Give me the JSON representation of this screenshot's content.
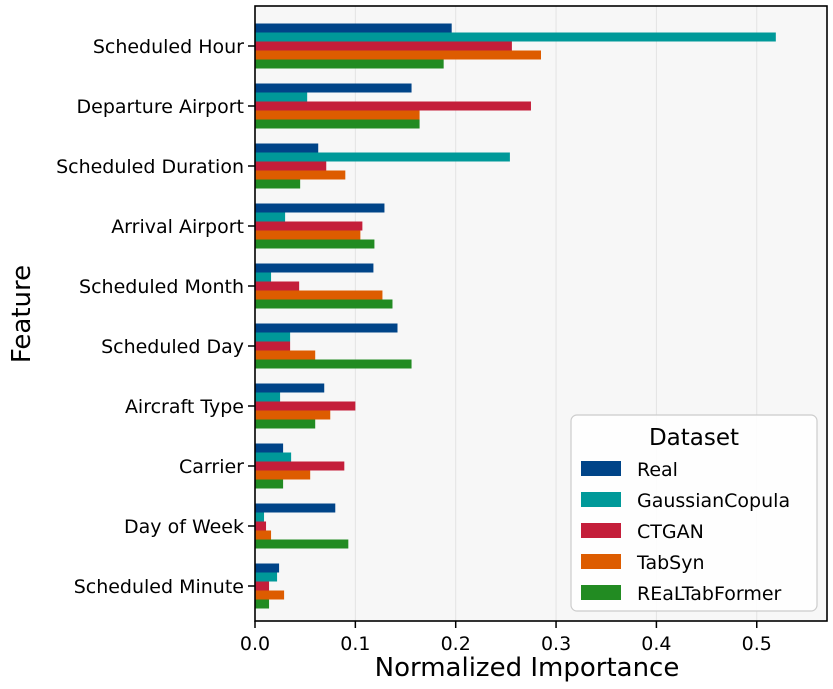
{
  "chart_data": {
    "type": "bar",
    "orientation": "horizontal",
    "xlabel": "Normalized Importance",
    "ylabel": "Feature",
    "xlim": [
      0,
      0.57
    ],
    "xticks": [
      "0.0",
      "0.1",
      "0.2",
      "0.3",
      "0.4",
      "0.5"
    ],
    "xtick_values": [
      0,
      0.1,
      0.2,
      0.3,
      0.4,
      0.5
    ],
    "grid": "vertical",
    "categories": [
      "Scheduled Hour",
      "Departure Airport",
      "Scheduled Duration",
      "Arrival Airport",
      "Scheduled Month",
      "Scheduled Day",
      "Aircraft Type",
      "Carrier",
      "Day of Week",
      "Scheduled Minute"
    ],
    "legend": {
      "title": "Dataset",
      "placement": "lower-right"
    },
    "series": [
      {
        "name": "Real",
        "color": "#004488",
        "values": [
          0.196,
          0.156,
          0.063,
          0.129,
          0.118,
          0.142,
          0.069,
          0.028,
          0.08,
          0.024
        ]
      },
      {
        "name": "GaussianCopula",
        "color": "#009999",
        "values": [
          0.519,
          0.052,
          0.254,
          0.03,
          0.016,
          0.035,
          0.025,
          0.036,
          0.009,
          0.022
        ]
      },
      {
        "name": "CTGAN",
        "color": "#c41e3a",
        "values": [
          0.256,
          0.275,
          0.071,
          0.107,
          0.044,
          0.035,
          0.1,
          0.089,
          0.011,
          0.014
        ]
      },
      {
        "name": "TabSyn",
        "color": "#dd5c00",
        "values": [
          0.285,
          0.164,
          0.09,
          0.105,
          0.127,
          0.06,
          0.075,
          0.055,
          0.016,
          0.029
        ]
      },
      {
        "name": "REaLTabFormer",
        "color": "#228b22",
        "values": [
          0.188,
          0.164,
          0.045,
          0.119,
          0.137,
          0.156,
          0.06,
          0.028,
          0.093,
          0.014
        ]
      }
    ]
  }
}
